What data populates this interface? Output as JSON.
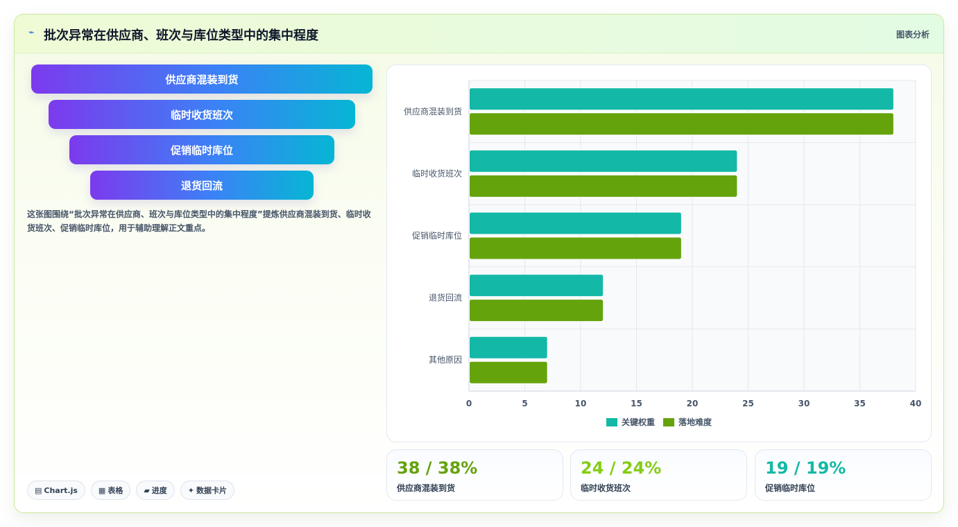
{
  "header": {
    "icon": "trend-icon",
    "title": "批次异常在供应商、班次与库位类型中的集中程度",
    "tag": "图表分析"
  },
  "funnel": {
    "steps": [
      "供应商混装到货",
      "临时收货班次",
      "促销临时库位",
      "退货回流"
    ]
  },
  "description": "这张图围绕“批次异常在供应商、班次与库位类型中的集中程度”提炼供应商混装到货、临时收货班次、促销临时库位，用于辅助理解正文重点。",
  "pills": [
    {
      "icon": "▤",
      "label": "Chart.js"
    },
    {
      "icon": "▦",
      "label": "表格"
    },
    {
      "icon": "▰",
      "label": "进度"
    },
    {
      "icon": "✦",
      "label": "数据卡片"
    }
  ],
  "colors": {
    "series1": "#14b8a6",
    "series2": "#65a30d",
    "kpi1": "#65a30d",
    "kpi2": "#84cc16",
    "kpi3": "#14b8a6"
  },
  "chart_data": {
    "type": "bar",
    "orientation": "horizontal",
    "categories": [
      "供应商混装到货",
      "临时收货班次",
      "促销临时库位",
      "退货回流",
      "其他原因"
    ],
    "series": [
      {
        "name": "关键权重",
        "values": [
          38,
          24,
          19,
          12,
          7
        ]
      },
      {
        "name": "落地难度",
        "values": [
          38,
          24,
          19,
          12,
          7
        ]
      }
    ],
    "xlim": [
      0,
      40
    ],
    "xticks": [
      0,
      5,
      10,
      15,
      20,
      25,
      30,
      35,
      40
    ],
    "grid": true,
    "legend": "bottom"
  },
  "kpis": [
    {
      "value": "38 / 38%",
      "label": "供应商混装到货"
    },
    {
      "value": "24 / 24%",
      "label": "临时收货班次"
    },
    {
      "value": "19 / 19%",
      "label": "促销临时库位"
    }
  ]
}
